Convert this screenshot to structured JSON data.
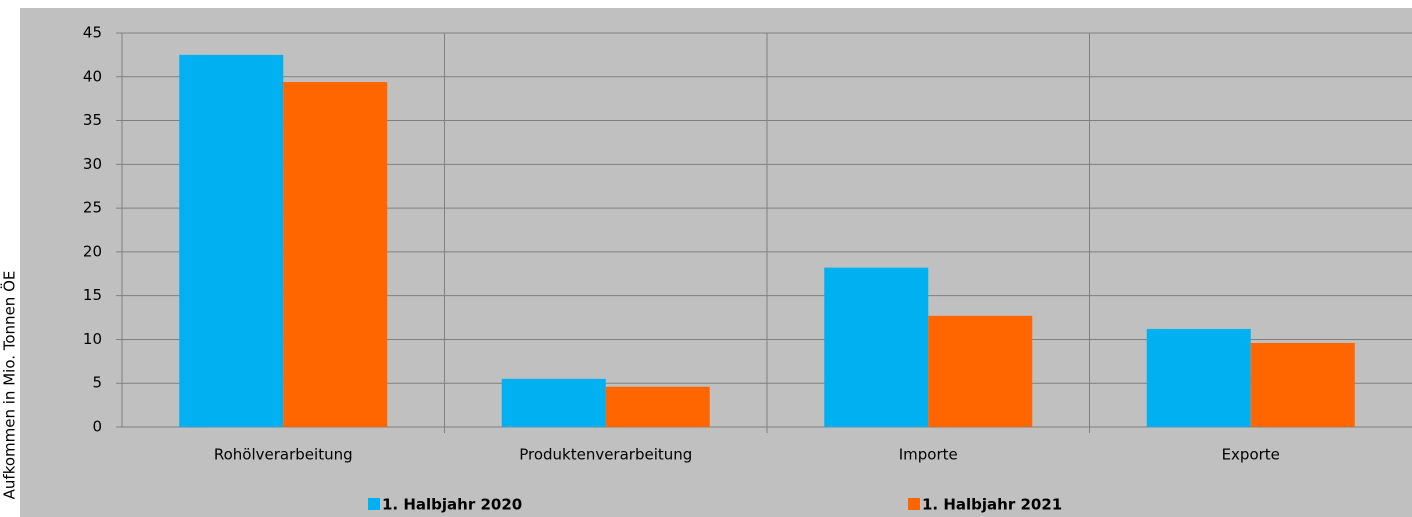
{
  "chart_data": {
    "type": "bar",
    "y_label": "Aufkommen  in Mio. Tonnen ÖE",
    "categories": [
      "Rohölverarbeitung",
      "Produktenverarbeitung",
      "Importe",
      "Exporte"
    ],
    "series": [
      {
        "name": "1. Halbjahr 2020",
        "color": "#00b0f0",
        "values": [
          42.5,
          5.5,
          18.2,
          11.2
        ]
      },
      {
        "name": "1. Halbjahr 2021",
        "color": "#ff6600",
        "values": [
          39.4,
          4.6,
          12.7,
          9.6
        ]
      }
    ],
    "ylim": [
      0,
      45
    ],
    "yticks": [
      0,
      5,
      10,
      15,
      20,
      25,
      30,
      35,
      40,
      45
    ],
    "grid": true,
    "legend": "bottom"
  }
}
